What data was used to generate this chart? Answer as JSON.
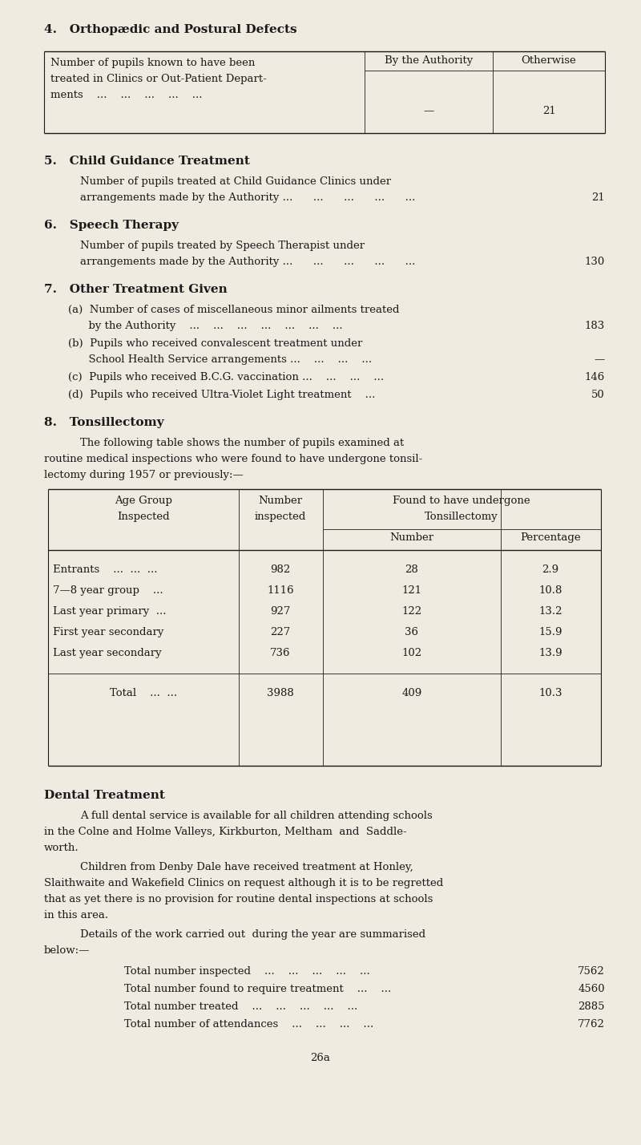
{
  "bg_color": "#f0ebe0",
  "text_color": "#1a1a1a",
  "section4_title": "4.   Orthopædic and Postural Defects",
  "table1_col2_header": "By the Authority",
  "table1_col3_header": "Otherwise",
  "table1_col2_val": "—",
  "table1_col3_val": "21",
  "section5_title": "5.   Child Guidance Treatment",
  "section5_text1": "Number of pupils treated at Child Guidance Clinics under",
  "section5_text2": "arrangements made by the Authority ...      ...      ...      ...      ...",
  "section5_val": "21",
  "section6_title": "6.   Speech Therapy",
  "section6_text1": "Number of pupils treated by Speech Therapist under",
  "section6_text2": "arrangements made by the Authority ...      ...      ...      ...      ...",
  "section6_val": "130",
  "section7_title": "7.   Other Treatment Given",
  "sec7a_line1": "(a)  Number of cases of miscellaneous minor ailments treated",
  "sec7a_line2": "      by the Authority    ...    ...    ...    ...    ...    ...    ...",
  "sec7a_val": "183",
  "sec7b_line1": "(b)  Pupils who received convalescent treatment under",
  "sec7b_line2": "      School Health Service arrangements ...    ...    ...    ...",
  "sec7b_val": "—",
  "sec7c_line1": "(c)  Pupils who received B.C.G. vaccination ...    ...    ...    ...",
  "sec7c_val": "146",
  "sec7d_line1": "(d)  Pupils who received Ultra-Violet Light treatment    ...",
  "sec7d_val": "50",
  "section8_title": "8.   Tonsillectomy",
  "section8_para1": "The following table shows the number of pupils examined at",
  "section8_para2": "routine medical inspections who were found to have undergone tonsil-",
  "section8_para3": "lectomy during 1957 or previously:—",
  "tonsil_col1_h1": "Age Group",
  "tonsil_col1_h2": "Inspected",
  "tonsil_col2_h1": "Number",
  "tonsil_col2_h2": "inspected",
  "tonsil_col3_h1": "Found to have undergone",
  "tonsil_col3_h2": "Tonsillectomy",
  "tonsil_col4_h": "Number",
  "tonsil_col5_h": "Percentage",
  "tonsil_rows": [
    [
      "Entrants    ...  ...  ...",
      "982",
      "28",
      "2.9"
    ],
    [
      "7—8 year group    ...",
      "1116",
      "121",
      "10.8"
    ],
    [
      "Last year primary  ...",
      "927",
      "122",
      "13.2"
    ],
    [
      "First year secondary",
      "227",
      "36",
      "15.9"
    ],
    [
      "Last year secondary",
      "736",
      "102",
      "13.9"
    ]
  ],
  "tonsil_total_label": "Total    ...  ...",
  "tonsil_total_vals": [
    "3988",
    "409",
    "10.3"
  ],
  "dental_title": "Dental Treatment",
  "dental_para1": "A full dental service is available for all children attending schools",
  "dental_para2": "in the Colne and Holme Valleys, Kirkburton, Meltham  and  Saddle-",
  "dental_para3": "worth.",
  "dental_para4": "Children from Denby Dale have received treatment at Honley,",
  "dental_para5": "Slaithwaite and Wakefield Clinics on request although it is to be regretted",
  "dental_para6": "that as yet there is no provision for routine dental inspections at schools",
  "dental_para7": "in this area.",
  "dental_para8": "Details of the work carried out  during the year are summarised",
  "dental_para9": "below:—",
  "dental_items": [
    [
      "Total number inspected    ...    ...    ...    ...    ...",
      "7562"
    ],
    [
      "Total number found to require treatment    ...    ...",
      "4560"
    ],
    [
      "Total number treated    ...    ...    ...    ...    ...",
      "2885"
    ],
    [
      "Total number of attendances    ...    ...    ...    ...",
      "7762"
    ]
  ],
  "page_num": "26a"
}
